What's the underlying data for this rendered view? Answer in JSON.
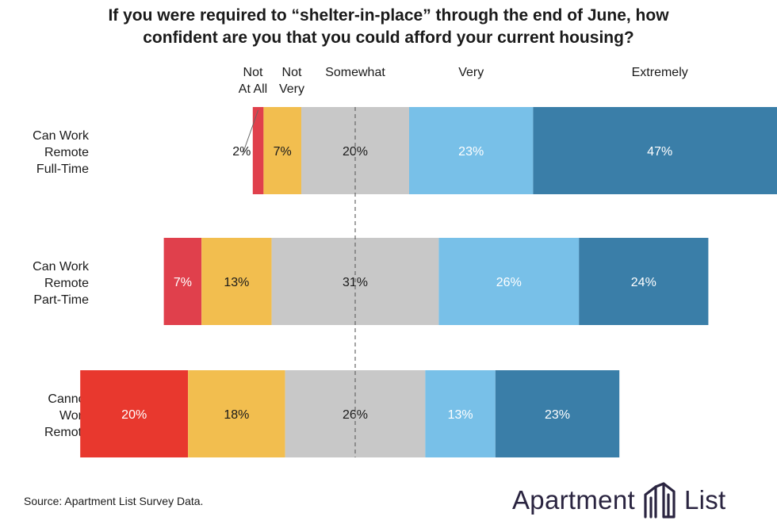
{
  "title_lines": [
    "If you were required to “shelter-in-place” through the end of June, how",
    "confident are you that you could afford your current housing?"
  ],
  "source": "Source: Apartment List Survey Data.",
  "logo": {
    "left_word": "Apartment",
    "right_word": "List",
    "icon": "building-icon",
    "color": "#2a2440"
  },
  "colors": {
    "not_at_all": [
      "#e0404c",
      "#e0404c",
      "#e8382e"
    ],
    "not_very": "#f2be4f",
    "somewhat": "#c8c8c8",
    "very": "#78c0e8",
    "extremely": "#3a7ea8"
  },
  "chart_data": {
    "type": "bar",
    "orientation": "horizontal",
    "stacked": true,
    "diverging": true,
    "title": "If you were required to “shelter-in-place” through the end of June, how confident are you that you could afford your current housing?",
    "legend": [
      "Not At All",
      "Not Very",
      "Somewhat",
      "Very",
      "Extremely"
    ],
    "legend_display": [
      [
        "Not",
        "At All"
      ],
      [
        "Not",
        "Very"
      ],
      [
        "Somewhat"
      ],
      [
        "Very"
      ],
      [
        "Extremely"
      ]
    ],
    "categories": [
      [
        "Can Work",
        "Remote",
        "Full-Time"
      ],
      [
        "Can Work",
        "Remote",
        "Part-Time"
      ],
      [
        "Cannot",
        "Work",
        "Remote"
      ]
    ],
    "series": [
      {
        "name": "Not At All",
        "values": [
          2,
          7,
          20
        ]
      },
      {
        "name": "Not Very",
        "values": [
          7,
          13,
          18
        ]
      },
      {
        "name": "Somewhat",
        "values": [
          20,
          31,
          26
        ]
      },
      {
        "name": "Very",
        "values": [
          23,
          26,
          13
        ]
      },
      {
        "name": "Extremely",
        "values": [
          47,
          24,
          23
        ]
      }
    ],
    "labels": [
      [
        "2%",
        "7%",
        "20%",
        "23%",
        "47%"
      ],
      [
        "7%",
        "13%",
        "31%",
        "26%",
        "24%"
      ],
      [
        "20%",
        "18%",
        "26%",
        "13%",
        "23%"
      ]
    ],
    "center_line": "midpoint of Somewhat, dashed",
    "grid": false
  }
}
